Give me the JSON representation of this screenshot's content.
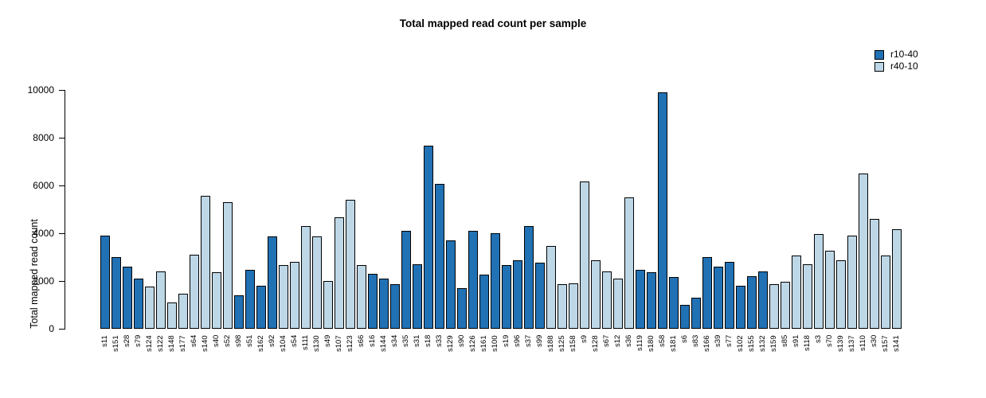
{
  "title": "Total mapped read count per sample",
  "legend": [
    {
      "label": "r10-40",
      "color": "#2171B5"
    },
    {
      "label": "r40-10",
      "color": "#BDD7E7"
    }
  ],
  "chart_data": {
    "type": "bar",
    "title": "Total mapped read count per sample",
    "xlabel": "",
    "ylabel": "Total mapped read count",
    "ylim": [
      0,
      10000
    ],
    "yticks": [
      0,
      2000,
      4000,
      6000,
      8000,
      10000
    ],
    "grid": false,
    "legend_position": "top-right",
    "bar_colors": {
      "r10-40": "#2171B5",
      "r40-10": "#BDD7E7"
    },
    "border_color": "#000000",
    "categories": [
      "s11",
      "s151",
      "s28",
      "s79",
      "s124",
      "s122",
      "s148",
      "s177",
      "s64",
      "s140",
      "s40",
      "s52",
      "s98",
      "s51",
      "s162",
      "s92",
      "s104",
      "s54",
      "s111",
      "s130",
      "s49",
      "s107",
      "s123",
      "s66",
      "s16",
      "s144",
      "s34",
      "s35",
      "s31",
      "s18",
      "s33",
      "s129",
      "s90",
      "s126",
      "s161",
      "s100",
      "s19",
      "s96",
      "s37",
      "s99",
      "s188",
      "s125",
      "s158",
      "s9",
      "s128",
      "s67",
      "s12",
      "s36",
      "s119",
      "s180",
      "s58",
      "s181",
      "s6",
      "s83",
      "s166",
      "s39",
      "s77",
      "s102",
      "s155",
      "s132",
      "s159",
      "s85",
      "s91",
      "s118",
      "s3",
      "s70",
      "s139",
      "s137",
      "s110",
      "s30",
      "s157",
      "s141"
    ],
    "values": [
      3900,
      3000,
      2600,
      2100,
      1750,
      2400,
      1100,
      1450,
      3100,
      5550,
      2350,
      5300,
      1400,
      2450,
      1800,
      3850,
      2650,
      2800,
      4300,
      3850,
      2000,
      4650,
      5400,
      2650,
      2300,
      2100,
      1850,
      4100,
      2700,
      7650,
      6050,
      3700,
      1700,
      4100,
      2250,
      4000,
      2650,
      2850,
      4300,
      2750,
      3450,
      1850,
      1900,
      6150,
      2850,
      2400,
      2100,
      5500,
      2450,
      2350,
      9900,
      2150,
      1000,
      1300,
      3000,
      2600,
      2800,
      1800,
      2200,
      2400,
      1850,
      1950,
      3050,
      2700,
      3950,
      3250,
      2850,
      3900,
      6500,
      4600,
      3050,
      4150
    ],
    "groups": [
      "r10-40",
      "r10-40",
      "r10-40",
      "r10-40",
      "r40-10",
      "r40-10",
      "r40-10",
      "r40-10",
      "r40-10",
      "r40-10",
      "r40-10",
      "r40-10",
      "r10-40",
      "r10-40",
      "r10-40",
      "r10-40",
      "r40-10",
      "r40-10",
      "r40-10",
      "r40-10",
      "r40-10",
      "r40-10",
      "r40-10",
      "r40-10",
      "r10-40",
      "r10-40",
      "r10-40",
      "r10-40",
      "r10-40",
      "r10-40",
      "r10-40",
      "r10-40",
      "r10-40",
      "r10-40",
      "r10-40",
      "r10-40",
      "r10-40",
      "r10-40",
      "r10-40",
      "r10-40",
      "r40-10",
      "r40-10",
      "r40-10",
      "r40-10",
      "r40-10",
      "r40-10",
      "r40-10",
      "r40-10",
      "r10-40",
      "r10-40",
      "r10-40",
      "r10-40",
      "r10-40",
      "r10-40",
      "r10-40",
      "r10-40",
      "r10-40",
      "r10-40",
      "r10-40",
      "r10-40",
      "r40-10",
      "r40-10",
      "r40-10",
      "r40-10",
      "r40-10",
      "r40-10",
      "r40-10",
      "r40-10",
      "r40-10",
      "r40-10",
      "r40-10",
      "r40-10"
    ]
  }
}
